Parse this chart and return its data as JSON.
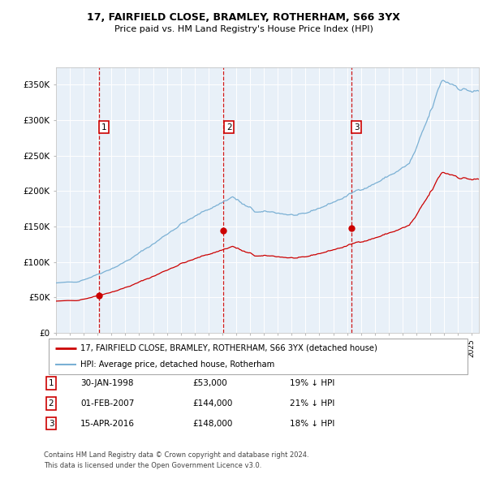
{
  "title1": "17, FAIRFIELD CLOSE, BRAMLEY, ROTHERHAM, S66 3YX",
  "title2": "Price paid vs. HM Land Registry's House Price Index (HPI)",
  "legend_property": "17, FAIRFIELD CLOSE, BRAMLEY, ROTHERHAM, S66 3YX (detached house)",
  "legend_hpi": "HPI: Average price, detached house, Rotherham",
  "transactions": [
    {
      "num": 1,
      "date": "30-JAN-1998",
      "price": 53000,
      "hpi_pct": "19% ↓ HPI",
      "date_dec": 1998.08
    },
    {
      "num": 2,
      "date": "01-FEB-2007",
      "price": 144000,
      "hpi_pct": "21% ↓ HPI",
      "date_dec": 2007.09
    },
    {
      "num": 3,
      "date": "15-APR-2016",
      "price": 148000,
      "hpi_pct": "18% ↓ HPI",
      "date_dec": 2016.29
    }
  ],
  "footer1": "Contains HM Land Registry data © Crown copyright and database right 2024.",
  "footer2": "This data is licensed under the Open Government Licence v3.0.",
  "property_color": "#cc0000",
  "hpi_color": "#7ab0d4",
  "plot_bg": "#e8f0f8",
  "grid_color": "#ffffff",
  "dashed_line_color": "#cc0000",
  "ylim": [
    0,
    375000
  ],
  "yticks": [
    0,
    50000,
    100000,
    150000,
    200000,
    250000,
    300000,
    350000
  ],
  "ytick_labels": [
    "£0",
    "£50K",
    "£100K",
    "£150K",
    "£200K",
    "£250K",
    "£300K",
    "£350K"
  ],
  "xstart": 1995.0,
  "xend": 2025.5
}
